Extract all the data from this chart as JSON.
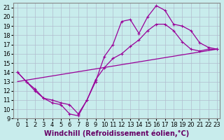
{
  "xlabel": "Windchill (Refroidissement éolien,°C)",
  "ylabel": "",
  "xlim": [
    -0.5,
    23.3
  ],
  "ylim": [
    9,
    21.5
  ],
  "xticks": [
    0,
    1,
    2,
    3,
    4,
    5,
    6,
    7,
    8,
    9,
    10,
    11,
    12,
    13,
    14,
    15,
    16,
    17,
    18,
    19,
    20,
    21,
    22,
    23
  ],
  "yticks": [
    9,
    10,
    11,
    12,
    13,
    14,
    15,
    16,
    17,
    18,
    19,
    20,
    21
  ],
  "bg_color": "#c8ecec",
  "line_color": "#990099",
  "line1_x": [
    0,
    1,
    2,
    3,
    4,
    5,
    6,
    7,
    8,
    9,
    10,
    11,
    12,
    13,
    14,
    15,
    16,
    17,
    18,
    19,
    20,
    21,
    22,
    23
  ],
  "line1_y": [
    14,
    13,
    12,
    11.2,
    10.7,
    10.5,
    9.5,
    9.3,
    11.0,
    13.0,
    15.7,
    17.0,
    19.5,
    19.7,
    18.2,
    20.0,
    21.2,
    20.7,
    19.2,
    19.0,
    18.5,
    17.2,
    16.7,
    16.5
  ],
  "line2_x": [
    0,
    1,
    2,
    3,
    4,
    5,
    6,
    7,
    8,
    9,
    10,
    11,
    12,
    13,
    14,
    15,
    16,
    17,
    18,
    19,
    20,
    21,
    22,
    23
  ],
  "line2_y": [
    14,
    13,
    12.2,
    11.2,
    11.0,
    10.7,
    10.5,
    9.5,
    11.0,
    13.2,
    14.5,
    15.5,
    16.0,
    16.8,
    17.5,
    18.5,
    19.2,
    19.2,
    18.5,
    17.3,
    16.5,
    16.3,
    16.5,
    16.5
  ],
  "line3_x": [
    0,
    23
  ],
  "line3_y": [
    13.0,
    16.5
  ],
  "tick_fontsize": 6,
  "xlabel_fontsize": 7
}
